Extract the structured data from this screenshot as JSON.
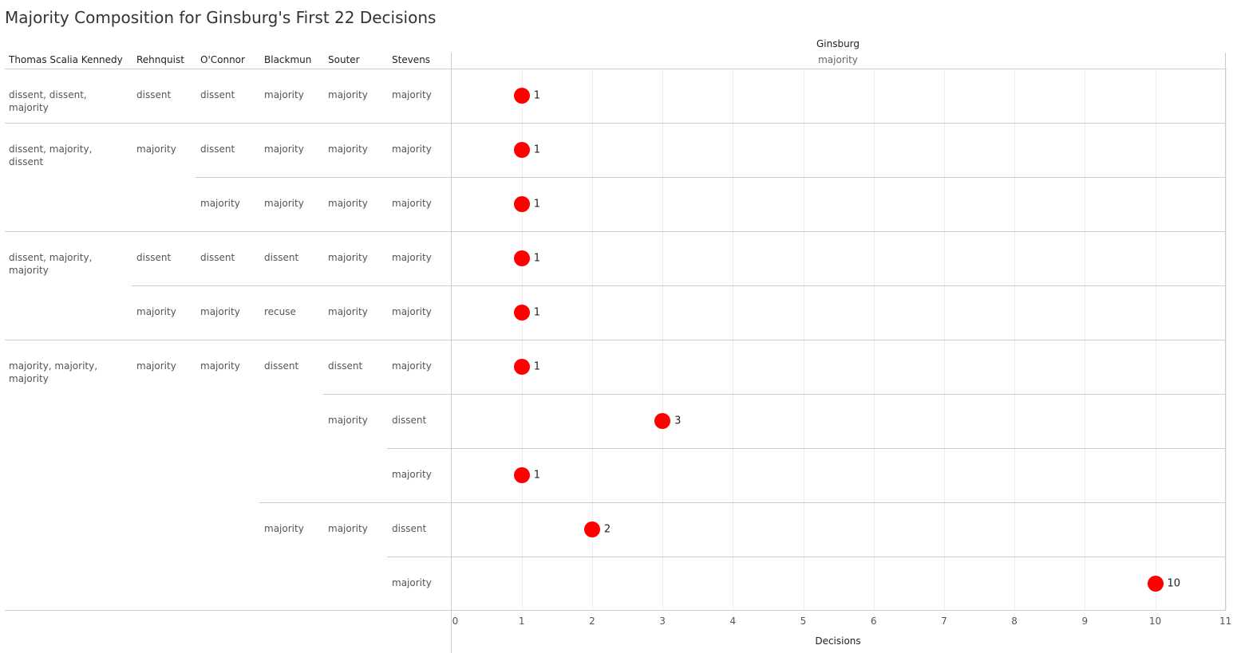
{
  "chart_data": {
    "type": "scatter",
    "title": "Majority Composition for Ginsburg's First 22 Decisions",
    "column_title": "Ginsburg",
    "column_subtitle": "majority",
    "xlabel": "Decisions",
    "xlim": [
      0,
      11
    ],
    "xticks": [
      "0",
      "1",
      "2",
      "3",
      "4",
      "5",
      "6",
      "7",
      "8",
      "9",
      "10",
      "11"
    ],
    "dot_color": "#ff0000",
    "row_headers": [
      "Thomas Scalia Kennedy",
      "Rehnquist",
      "O'Connor",
      "Blackmun",
      "Souter",
      "Stevens"
    ],
    "rows": [
      {
        "tsk": "dissent, dissent, majority",
        "rehnquist": "dissent",
        "oconnor": "dissent",
        "blackmun": "majority",
        "souter": "majority",
        "stevens": "majority",
        "value": 1,
        "label": "1"
      },
      {
        "tsk": "dissent, majority, dissent",
        "rehnquist": "majority",
        "oconnor": "dissent",
        "blackmun": "majority",
        "souter": "majority",
        "stevens": "majority",
        "value": 1,
        "label": "1"
      },
      {
        "tsk": "",
        "rehnquist": "",
        "oconnor": "majority",
        "blackmun": "majority",
        "souter": "majority",
        "stevens": "majority",
        "value": 1,
        "label": "1"
      },
      {
        "tsk": "dissent, majority, majority",
        "rehnquist": "dissent",
        "oconnor": "dissent",
        "blackmun": "dissent",
        "souter": "majority",
        "stevens": "majority",
        "value": 1,
        "label": "1"
      },
      {
        "tsk": "",
        "rehnquist": "majority",
        "oconnor": "majority",
        "blackmun": "recuse",
        "souter": "majority",
        "stevens": "majority",
        "value": 1,
        "label": "1"
      },
      {
        "tsk": "majority, majority, majority",
        "rehnquist": "majority",
        "oconnor": "majority",
        "blackmun": "dissent",
        "souter": "dissent",
        "stevens": "majority",
        "value": 1,
        "label": "1"
      },
      {
        "tsk": "",
        "rehnquist": "",
        "oconnor": "",
        "blackmun": "",
        "souter": "majority",
        "stevens": "dissent",
        "value": 3,
        "label": "3"
      },
      {
        "tsk": "",
        "rehnquist": "",
        "oconnor": "",
        "blackmun": "",
        "souter": "",
        "stevens": "majority",
        "value": 1,
        "label": "1"
      },
      {
        "tsk": "",
        "rehnquist": "",
        "oconnor": "",
        "blackmun": "majority",
        "souter": "majority",
        "stevens": "dissent",
        "value": 2,
        "label": "2"
      },
      {
        "tsk": "",
        "rehnquist": "",
        "oconnor": "",
        "blackmun": "",
        "souter": "",
        "stevens": "majority",
        "value": 10,
        "label": "10"
      }
    ]
  }
}
